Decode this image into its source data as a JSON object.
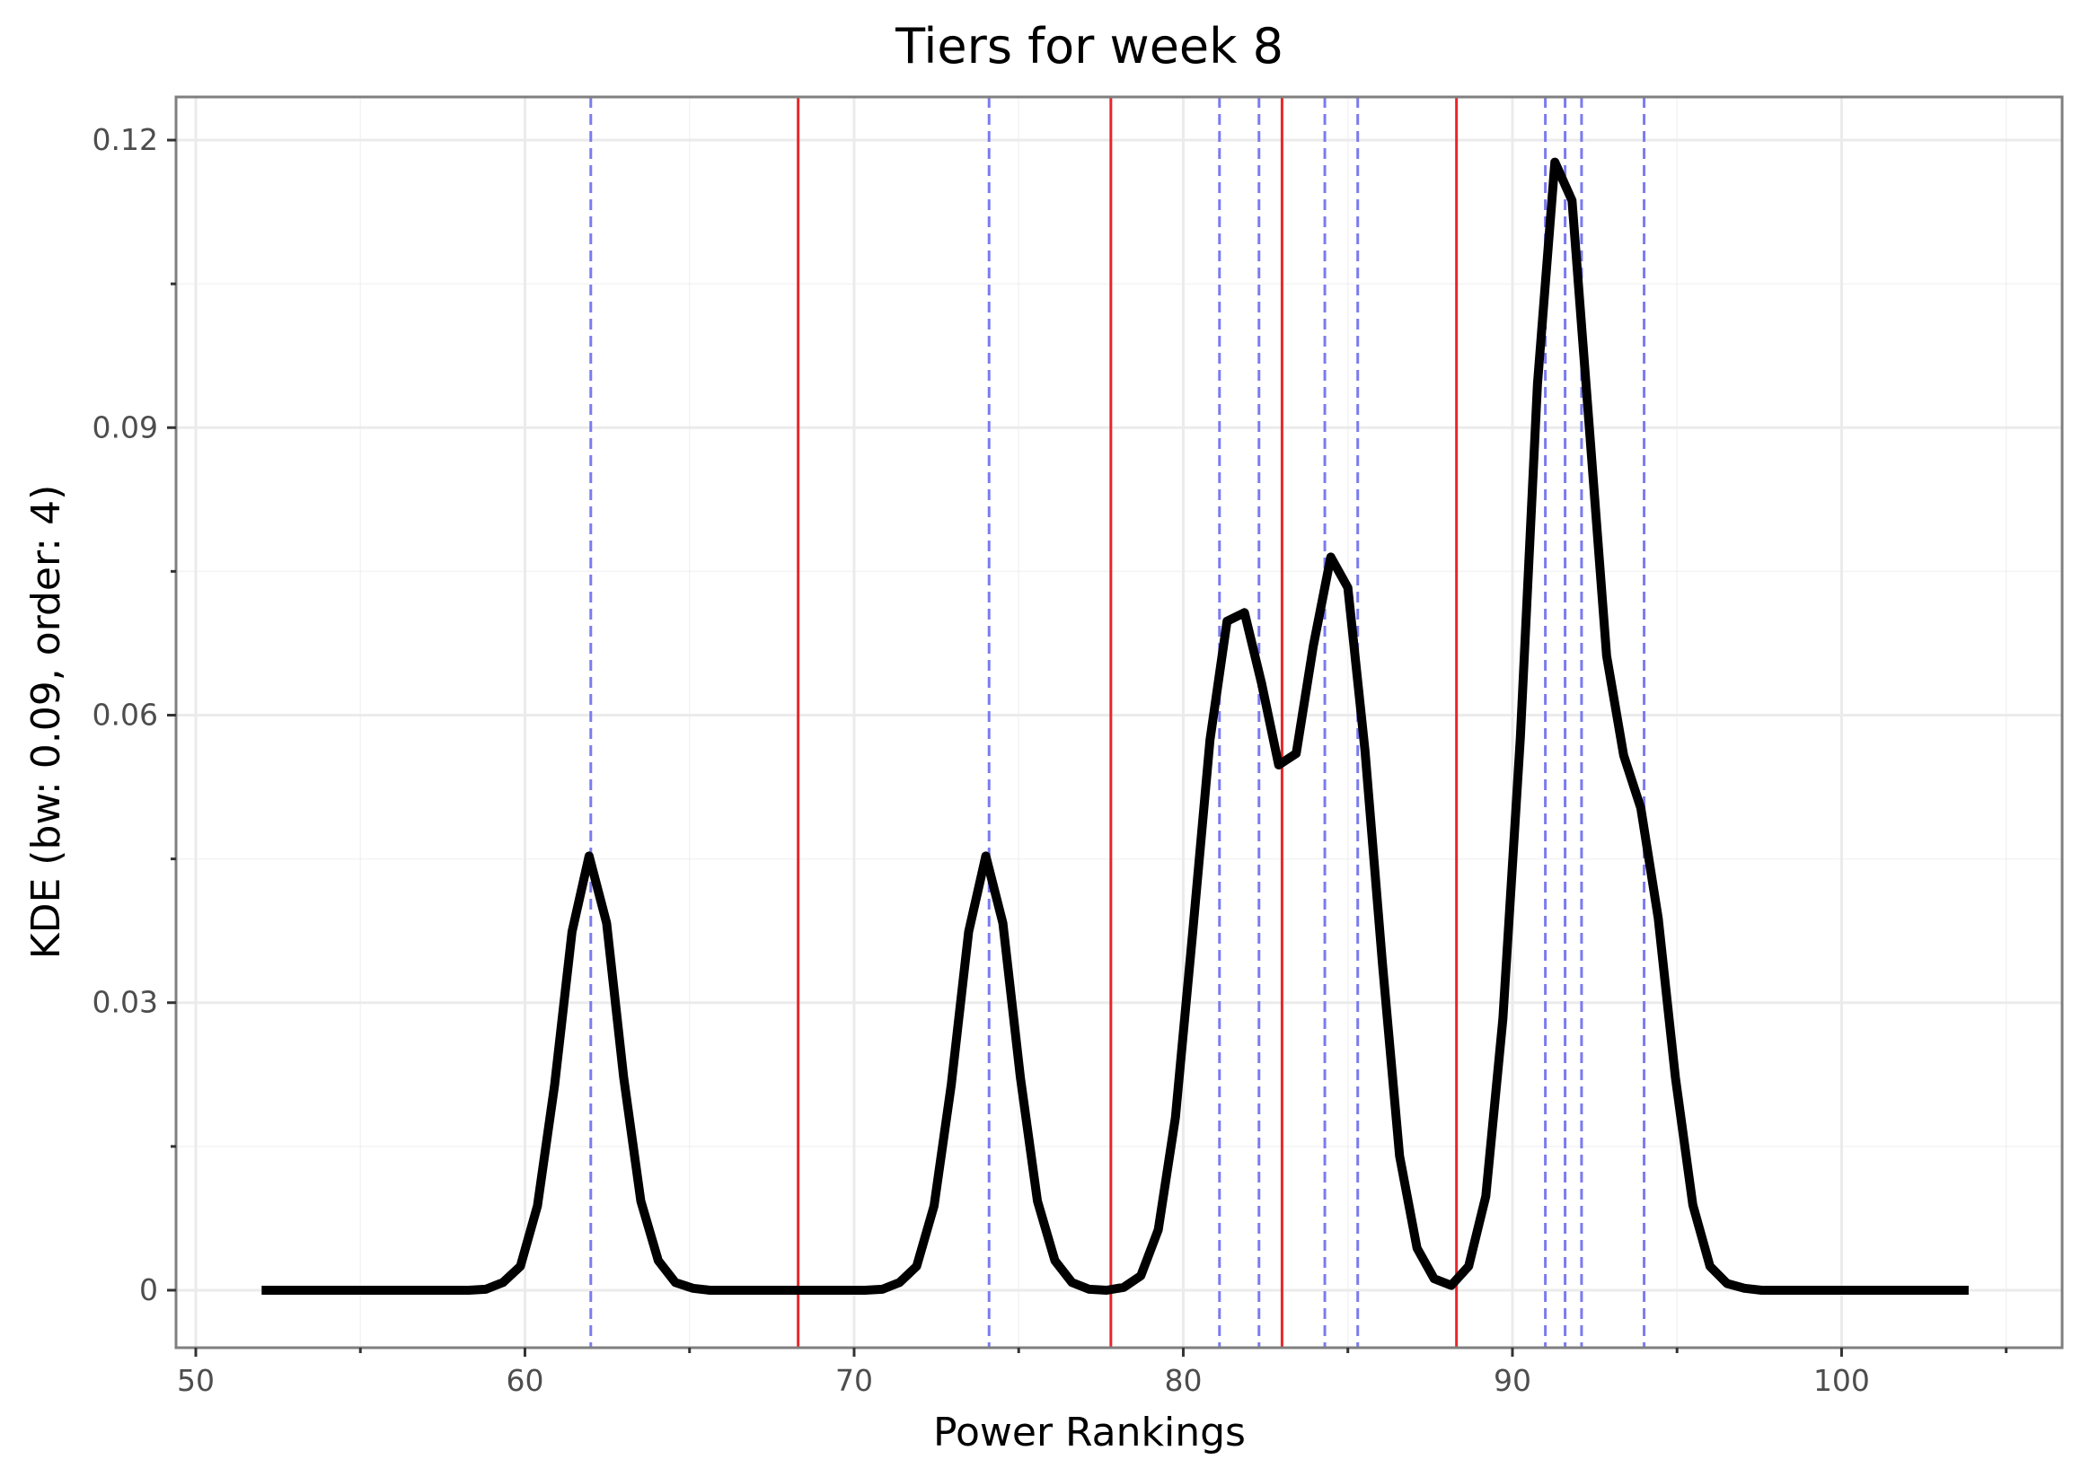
{
  "chart_data": {
    "type": "line",
    "title": "Tiers for week 8",
    "xlabel": "Power Rankings",
    "ylabel": "KDE (bw: 0.09, order: 4)",
    "xlim": [
      49.4,
      106.7
    ],
    "ylim": [
      -0.006,
      0.1245
    ],
    "x_ticks": [
      50,
      60,
      70,
      80,
      90,
      100
    ],
    "x_tick_labels": [
      "50",
      "60",
      "70",
      "80",
      "90",
      "100"
    ],
    "x_minor_ticks": [
      55,
      65,
      75,
      85,
      95,
      105
    ],
    "y_ticks": [
      0,
      0.03,
      0.06,
      0.09,
      0.12
    ],
    "y_tick_labels": [
      "0",
      "0.03",
      "0.06",
      "0.09",
      "0.12"
    ],
    "y_minor_ticks": [
      0.015,
      0.045,
      0.075,
      0.105
    ],
    "grid": true,
    "colors": {
      "kde_line": "#000000",
      "tier_break": "#e8262a",
      "team_marker": "#7b7bf0",
      "grid": "#ebebeb",
      "panel_border": "#7f7f7f"
    },
    "tier_breaks": [
      68.3,
      77.8,
      83.0,
      88.3
    ],
    "team_scores": [
      62.0,
      74.1,
      81.1,
      82.3,
      84.3,
      85.3,
      91.0,
      91.6,
      92.1,
      94.0
    ],
    "series": [
      {
        "x": [
          52.0,
          52.52,
          53.05,
          53.57,
          54.1,
          54.62,
          55.14,
          55.67,
          56.19,
          56.71,
          57.24,
          57.76,
          58.29,
          58.81,
          59.33,
          59.86,
          60.38,
          60.9,
          61.43,
          61.95,
          62.48,
          63.0,
          63.52,
          64.05,
          64.57,
          65.1,
          65.62,
          66.14,
          66.67,
          67.19,
          67.71,
          68.24,
          68.76,
          69.29,
          69.81,
          70.33,
          70.86,
          71.38,
          71.9,
          72.43,
          72.95,
          73.48,
          74.0,
          74.52,
          75.05,
          75.57,
          76.1,
          76.62,
          77.14,
          77.67,
          78.19,
          78.71,
          79.24,
          79.76,
          80.29,
          80.81,
          81.33,
          81.86,
          82.38,
          82.9,
          83.43,
          83.95,
          84.48,
          85.0,
          85.52,
          86.05,
          86.57,
          87.1,
          87.62,
          88.14,
          88.67,
          89.19,
          89.71,
          90.24,
          90.76,
          91.29,
          91.81,
          92.33,
          92.86,
          93.38,
          93.9,
          94.43,
          94.95,
          95.48,
          96.0,
          96.52,
          97.05,
          97.57,
          98.1,
          98.62,
          99.14,
          99.67,
          100.19,
          100.71,
          101.24,
          101.76,
          102.29,
          102.81,
          103.33,
          103.86
        ],
        "y": [
          0,
          0,
          0,
          0,
          0,
          0,
          0,
          0,
          0,
          0,
          0,
          0,
          0,
          0.0001,
          0.0008,
          0.0025,
          0.0088,
          0.0214,
          0.0374,
          0.0453,
          0.0383,
          0.0222,
          0.0093,
          0.0031,
          0.0008,
          0.0002,
          0,
          0,
          0,
          0,
          0,
          0,
          0,
          0,
          0,
          0,
          0.0001,
          0.0008,
          0.0025,
          0.0088,
          0.0214,
          0.0374,
          0.0453,
          0.0383,
          0.0222,
          0.0093,
          0.0031,
          0.0008,
          0.0001,
          0,
          0.0003,
          0.0015,
          0.0063,
          0.018,
          0.0375,
          0.0574,
          0.0698,
          0.0707,
          0.0633,
          0.0548,
          0.056,
          0.0672,
          0.0765,
          0.0733,
          0.0563,
          0.0341,
          0.014,
          0.0044,
          0.0012,
          0.0005,
          0.0025,
          0.0098,
          0.0283,
          0.0577,
          0.0945,
          0.1177,
          0.1137,
          0.0902,
          0.0662,
          0.0558,
          0.0503,
          0.0388,
          0.0222,
          0.0089,
          0.0025,
          0.0007,
          0.0002,
          0,
          0,
          0,
          0,
          0,
          0,
          0,
          0,
          0,
          0,
          0,
          0,
          0
        ]
      }
    ]
  }
}
